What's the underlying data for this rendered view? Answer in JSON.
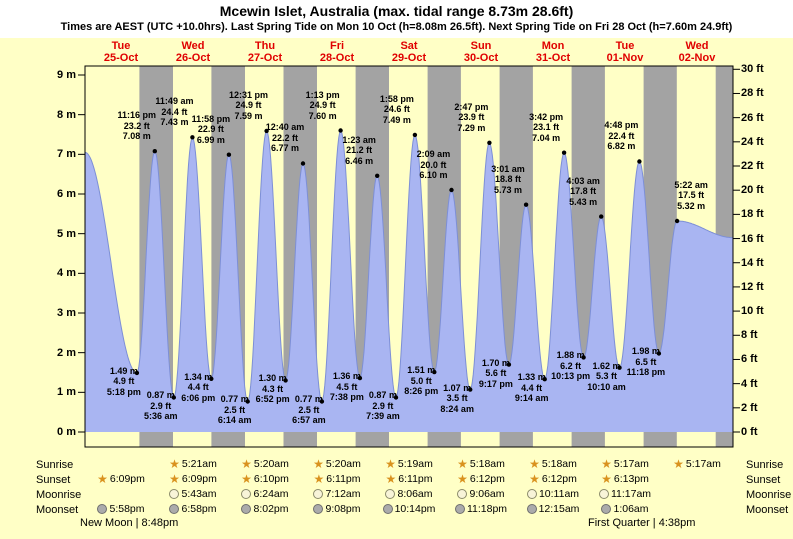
{
  "title": "Mcewin Islet, Australia (max. tidal range 8.73m 28.6ft)",
  "subtitle": "Times are AEST (UTC +10.0hrs). Last Spring Tide on Mon 10 Oct (h=8.08m 26.5ft). Next Spring Tide on Fri 28 Oct (h=7.60m 24.9ft)",
  "chart_data": {
    "type": "area",
    "title": "Mcewin Islet, Australia (max. tidal range 8.73m 28.6ft)",
    "days": [
      {
        "dow": "Tue",
        "date": "25-Oct"
      },
      {
        "dow": "Wed",
        "date": "26-Oct"
      },
      {
        "dow": "Thu",
        "date": "27-Oct"
      },
      {
        "dow": "Fri",
        "date": "28-Oct"
      },
      {
        "dow": "Sat",
        "date": "29-Oct"
      },
      {
        "dow": "Sun",
        "date": "30-Oct"
      },
      {
        "dow": "Mon",
        "date": "31-Oct"
      },
      {
        "dow": "Tue",
        "date": "01-Nov"
      },
      {
        "dow": "Wed",
        "date": "02-Nov"
      }
    ],
    "y_axis_left": {
      "unit": "m",
      "min": 0,
      "max": 9,
      "tick_labels": [
        "9 m",
        "8 m",
        "7 m",
        "6 m",
        "5 m",
        "4 m",
        "3 m",
        "2 m",
        "1 m",
        "0 m"
      ]
    },
    "y_axis_right": {
      "unit": "ft",
      "min": 0,
      "max": 30,
      "tick_labels": [
        "30 ft",
        "28 ft",
        "26 ft",
        "24 ft",
        "22 ft",
        "20 ft",
        "18 ft",
        "16 ft",
        "14 ft",
        "12 ft",
        "10 ft",
        "8 ft",
        "6 ft",
        "4 ft",
        "2 ft",
        "0 ft"
      ]
    },
    "extremes": [
      {
        "day": 0,
        "type": "low",
        "time": "5:18 pm",
        "m": 1.49,
        "ft": 4.9
      },
      {
        "day": 0,
        "type": "high",
        "time": "11:16 pm",
        "m": 7.08,
        "ft": 23.2
      },
      {
        "day": 1,
        "type": "low",
        "time": "5:36 am",
        "m": 0.87,
        "ft": 2.9
      },
      {
        "day": 1,
        "type": "high",
        "time": "11:49 am",
        "m": 7.43,
        "ft": 24.4
      },
      {
        "day": 1,
        "type": "low",
        "time": "6:06 pm",
        "m": 1.34,
        "ft": 4.4
      },
      {
        "day": 1,
        "type": "high",
        "time": "11:58 pm",
        "m": 6.99,
        "ft": 22.9
      },
      {
        "day": 2,
        "type": "low",
        "time": "6:14 am",
        "m": 0.77,
        "ft": 2.5
      },
      {
        "day": 2,
        "type": "high",
        "time": "12:31 pm",
        "m": 7.59,
        "ft": 24.9
      },
      {
        "day": 2,
        "type": "low",
        "time": "6:52 pm",
        "m": 1.3,
        "ft": 4.3
      },
      {
        "day": 3,
        "type": "high",
        "time": "12:40 am",
        "m": 6.77,
        "ft": 22.2
      },
      {
        "day": 3,
        "type": "low",
        "time": "6:57 am",
        "m": 0.77,
        "ft": 2.5
      },
      {
        "day": 3,
        "type": "high",
        "time": "1:13 pm",
        "m": 7.6,
        "ft": 24.9
      },
      {
        "day": 3,
        "type": "low",
        "time": "7:38 pm",
        "m": 1.36,
        "ft": 4.5
      },
      {
        "day": 4,
        "type": "high",
        "time": "1:23 am",
        "m": 6.46,
        "ft": 21.2
      },
      {
        "day": 4,
        "type": "low",
        "time": "7:39 am",
        "m": 0.87,
        "ft": 2.9
      },
      {
        "day": 4,
        "type": "high",
        "time": "1:58 pm",
        "m": 7.49,
        "ft": 24.6
      },
      {
        "day": 4,
        "type": "low",
        "time": "8:26 pm",
        "m": 1.51,
        "ft": 5.0
      },
      {
        "day": 5,
        "type": "high",
        "time": "2:09 am",
        "m": 6.1,
        "ft": 20.0
      },
      {
        "day": 5,
        "type": "low",
        "time": "8:24 am",
        "m": 1.07,
        "ft": 3.5
      },
      {
        "day": 5,
        "type": "high",
        "time": "2:47 pm",
        "m": 7.29,
        "ft": 23.9
      },
      {
        "day": 5,
        "type": "low",
        "time": "9:17 pm",
        "m": 1.7,
        "ft": 5.6
      },
      {
        "day": 6,
        "type": "high",
        "time": "3:01 am",
        "m": 5.73,
        "ft": 18.8
      },
      {
        "day": 6,
        "type": "low",
        "time": "9:14 am",
        "m": 1.33,
        "ft": 4.4
      },
      {
        "day": 6,
        "type": "high",
        "time": "3:42 pm",
        "m": 7.04,
        "ft": 23.1
      },
      {
        "day": 6,
        "type": "low",
        "time": "10:13 pm",
        "m": 1.88,
        "ft": 6.2
      },
      {
        "day": 7,
        "type": "high",
        "time": "4:03 am",
        "m": 5.43,
        "ft": 17.8
      },
      {
        "day": 7,
        "type": "low",
        "time": "10:10 am",
        "m": 1.62,
        "ft": 5.3
      },
      {
        "day": 7,
        "type": "high",
        "time": "4:48 pm",
        "m": 6.82,
        "ft": 22.4
      },
      {
        "day": 7,
        "type": "low",
        "time": "11:18 pm",
        "m": 1.98,
        "ft": 6.5
      },
      {
        "day": 8,
        "type": "high",
        "time": "5:22 am",
        "m": 5.32,
        "ft": 17.5
      }
    ]
  },
  "almanac": {
    "rows": [
      {
        "key": "sunrise",
        "label": "Sunrise",
        "icon": "sunrise-star-icon",
        "entries": [
          {
            "day": 1,
            "time": "5:21am"
          },
          {
            "day": 2,
            "time": "5:20am"
          },
          {
            "day": 3,
            "time": "5:20am"
          },
          {
            "day": 4,
            "time": "5:19am"
          },
          {
            "day": 5,
            "time": "5:18am"
          },
          {
            "day": 6,
            "time": "5:18am"
          },
          {
            "day": 7,
            "time": "5:17am"
          },
          {
            "day": 8,
            "time": "5:17am"
          }
        ]
      },
      {
        "key": "sunset",
        "label": "Sunset",
        "icon": "sunset-star-icon",
        "entries": [
          {
            "day": 0,
            "time": "6:09pm"
          },
          {
            "day": 1,
            "time": "6:09pm"
          },
          {
            "day": 2,
            "time": "6:10pm"
          },
          {
            "day": 3,
            "time": "6:11pm"
          },
          {
            "day": 4,
            "time": "6:11pm"
          },
          {
            "day": 5,
            "time": "6:12pm"
          },
          {
            "day": 6,
            "time": "6:12pm"
          },
          {
            "day": 7,
            "time": "6:13pm"
          }
        ]
      },
      {
        "key": "moonrise",
        "label": "Moonrise",
        "icon": "moonrise-icon",
        "entries": [
          {
            "day": 1,
            "time": "5:43am"
          },
          {
            "day": 2,
            "time": "6:24am"
          },
          {
            "day": 3,
            "time": "7:12am"
          },
          {
            "day": 4,
            "time": "8:06am"
          },
          {
            "day": 5,
            "time": "9:06am"
          },
          {
            "day": 6,
            "time": "10:11am"
          },
          {
            "day": 7,
            "time": "11:17am"
          }
        ]
      },
      {
        "key": "moonset",
        "label": "Moonset",
        "icon": "moonset-icon",
        "entries": [
          {
            "day": 0,
            "time": "5:58pm"
          },
          {
            "day": 1,
            "time": "6:58pm"
          },
          {
            "day": 2,
            "time": "8:02pm"
          },
          {
            "day": 3,
            "time": "9:08pm"
          },
          {
            "day": 4,
            "time": "10:14pm"
          },
          {
            "day": 5,
            "time": "11:18pm"
          },
          {
            "day": 6,
            "time": "12:15am"
          },
          {
            "day": 7,
            "time": "1:06am"
          }
        ]
      }
    ],
    "phases": [
      {
        "label": "New Moon",
        "time": "8:48pm"
      },
      {
        "label": "First Quarter",
        "time": "4:38pm"
      }
    ]
  },
  "colors": {
    "background": "#ffffc6",
    "night_band": "#a3a3a3",
    "curve_fill": "#a9b5f2",
    "curve_stroke": "#7d8fd6",
    "header_text": "#e00000",
    "star": "#d9921e"
  }
}
